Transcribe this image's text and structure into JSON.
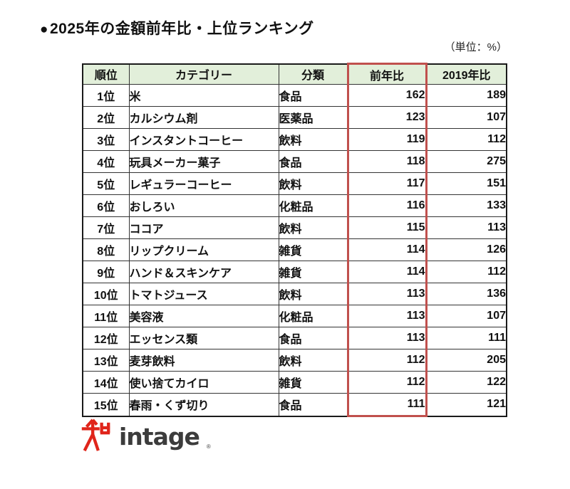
{
  "title": {
    "bullet": "●",
    "text": "2025年の金額前年比・上位ランキング"
  },
  "unit_label": "（単位：%）",
  "table": {
    "headers": [
      "順位",
      "カテゴリー",
      "分類",
      "前年比",
      "2019年比"
    ],
    "highlighted_column": "前年比",
    "rows": [
      {
        "rank": "1位",
        "category": "米",
        "class": "食品",
        "yoy": "162",
        "vs2019": "189"
      },
      {
        "rank": "2位",
        "category": "カルシウム剤",
        "class": "医薬品",
        "yoy": "123",
        "vs2019": "107"
      },
      {
        "rank": "3位",
        "category": "インスタントコーヒー",
        "class": "飲料",
        "yoy": "119",
        "vs2019": "112"
      },
      {
        "rank": "4位",
        "category": "玩具メーカー菓子",
        "class": "食品",
        "yoy": "118",
        "vs2019": "275"
      },
      {
        "rank": "5位",
        "category": "レギュラーコーヒー",
        "class": "飲料",
        "yoy": "117",
        "vs2019": "151"
      },
      {
        "rank": "6位",
        "category": "おしろい",
        "class": "化粧品",
        "yoy": "116",
        "vs2019": "133"
      },
      {
        "rank": "7位",
        "category": "ココア",
        "class": "飲料",
        "yoy": "115",
        "vs2019": "113"
      },
      {
        "rank": "8位",
        "category": "リップクリーム",
        "class": "雑貨",
        "yoy": "114",
        "vs2019": "126"
      },
      {
        "rank": "9位",
        "category": "ハンド＆スキンケア",
        "class": "雑貨",
        "yoy": "114",
        "vs2019": "112"
      },
      {
        "rank": "10位",
        "category": "トマトジュース",
        "class": "飲料",
        "yoy": "113",
        "vs2019": "136"
      },
      {
        "rank": "11位",
        "category": "美容液",
        "class": "化粧品",
        "yoy": "113",
        "vs2019": "107"
      },
      {
        "rank": "12位",
        "category": "エッセンス類",
        "class": "食品",
        "yoy": "113",
        "vs2019": "111"
      },
      {
        "rank": "13位",
        "category": "麦芽飲料",
        "class": "飲料",
        "yoy": "112",
        "vs2019": "205"
      },
      {
        "rank": "14位",
        "category": "使い捨てカイロ",
        "class": "雑貨",
        "yoy": "112",
        "vs2019": "122"
      },
      {
        "rank": "15位",
        "category": "春雨・くず切り",
        "class": "食品",
        "yoy": "111",
        "vs2019": "121"
      }
    ]
  },
  "logo": {
    "text": "intage",
    "registered_mark": "®",
    "mark_color": "#E0251B",
    "text_color": "#3C3C3C"
  },
  "colors": {
    "header_bg": "#E2EFDA",
    "highlight_border": "#C0504D",
    "value_blue": "#0070C0",
    "grid": "#333333"
  }
}
